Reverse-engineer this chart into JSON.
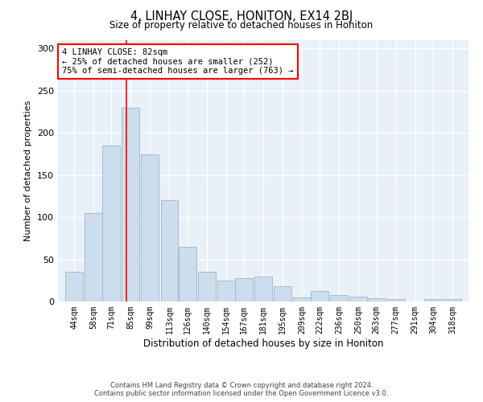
{
  "title": "4, LINHAY CLOSE, HONITON, EX14 2BJ",
  "subtitle": "Size of property relative to detached houses in Honiton",
  "xlabel": "Distribution of detached houses by size in Honiton",
  "ylabel": "Number of detached properties",
  "bar_color": "#ccdded",
  "bar_edge_color": "#aabbcc",
  "bar_centers": [
    44,
    58,
    71,
    85,
    99,
    113,
    126,
    140,
    154,
    167,
    181,
    195,
    209,
    222,
    236,
    250,
    263,
    277,
    291,
    304,
    318
  ],
  "bar_values": [
    35,
    105,
    185,
    230,
    175,
    120,
    65,
    35,
    25,
    28,
    30,
    18,
    5,
    12,
    8,
    6,
    4,
    3,
    0,
    3,
    3
  ],
  "bin_width": 13,
  "ylim": [
    0,
    310
  ],
  "yticks": [
    0,
    50,
    100,
    150,
    200,
    250,
    300
  ],
  "red_line_x": 82,
  "annotation_line1": "4 LINHAY CLOSE: 82sqm",
  "annotation_line2": "← 25% of detached houses are smaller (252)",
  "annotation_line3": "75% of semi-detached houses are larger (763) →",
  "footer_line1": "Contains HM Land Registry data © Crown copyright and database right 2024.",
  "footer_line2": "Contains public sector information licensed under the Open Government Licence v3.0.",
  "plot_bg_color": "#e8f0f8",
  "grid_color": "#ffffff",
  "xtick_labels": [
    "44sqm",
    "58sqm",
    "71sqm",
    "85sqm",
    "99sqm",
    "113sqm",
    "126sqm",
    "140sqm",
    "154sqm",
    "167sqm",
    "181sqm",
    "195sqm",
    "209sqm",
    "222sqm",
    "236sqm",
    "250sqm",
    "263sqm",
    "277sqm",
    "291sqm",
    "304sqm",
    "318sqm"
  ]
}
